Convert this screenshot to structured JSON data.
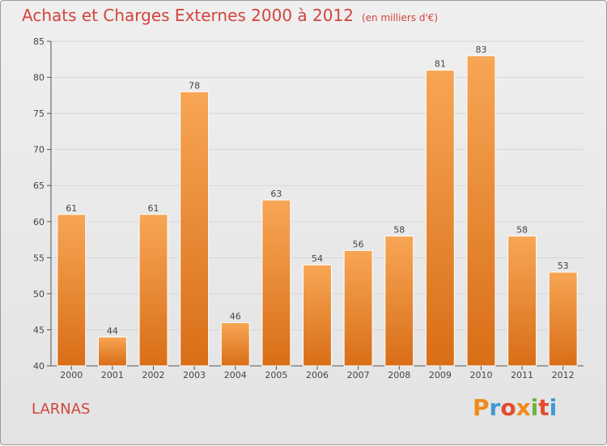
{
  "header": {
    "title": "Achats et Charges Externes 2000 à 2012",
    "subtitle": "(en milliers d'€)"
  },
  "footer": {
    "commune": "LARNAS",
    "logo_text": "Proxiti",
    "logo_colors": [
      "#f08a1c",
      "#3d9ad8",
      "#e34b2e",
      "#f08a1c",
      "#6db33f",
      "#e34b2e",
      "#3d9ad8"
    ]
  },
  "colors": {
    "bar_top": "#f7a655",
    "bar_bottom": "#d96e17",
    "title": "#d2443c",
    "grid": "#d7d7d7",
    "axis": "#555555",
    "label": "#444444"
  },
  "chart_data": {
    "type": "bar",
    "title": "Achats et Charges Externes 2000 à 2012",
    "subtitle": "(en milliers d'€)",
    "xlabel": "",
    "ylabel": "",
    "categories": [
      "2000",
      "2001",
      "2002",
      "2003",
      "2004",
      "2005",
      "2006",
      "2007",
      "2008",
      "2009",
      "2010",
      "2011",
      "2012"
    ],
    "values": [
      61,
      44,
      61,
      78,
      46,
      63,
      54,
      56,
      58,
      81,
      83,
      58,
      53
    ],
    "ylim": [
      40,
      85
    ],
    "yticks": [
      40,
      45,
      50,
      55,
      60,
      65,
      70,
      75,
      80,
      85
    ],
    "grid": true,
    "data_labels": true
  }
}
